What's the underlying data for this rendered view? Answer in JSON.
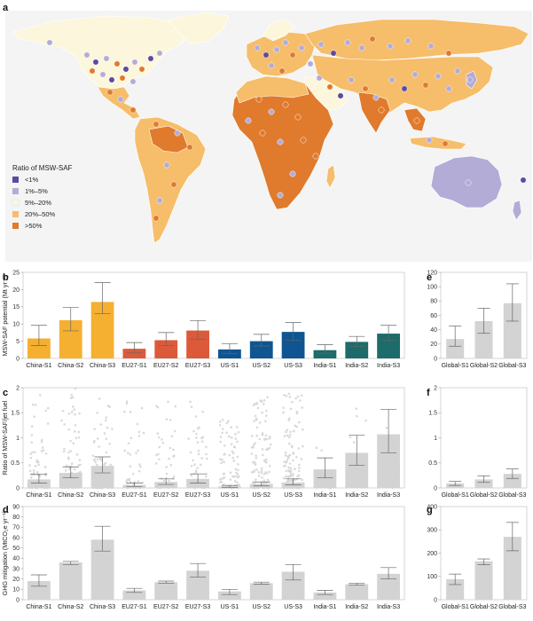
{
  "panel_labels": {
    "a": "a",
    "b": "b",
    "c": "c",
    "d": "d",
    "e": "e",
    "f": "f",
    "g": "g"
  },
  "legend": {
    "title": "Ratio of MSW-SAF",
    "items": [
      {
        "label": "<1%",
        "color": "#5a4aa3"
      },
      {
        "label": "1%–5%",
        "color": "#b3acd6"
      },
      {
        "label": "5%–20%",
        "color": "#fcf7dc"
      },
      {
        "label": "20%–50%",
        "color": "#f6bd6a"
      },
      {
        "label": ">50%",
        "color": "#e07a2c"
      }
    ]
  },
  "series_colors": {
    "China": "#f5b031",
    "EU27": "#dc5a3a",
    "US": "#0f5592",
    "India": "#1d6b6b",
    "Global": "#d3d3d3"
  },
  "chart_data": [
    {
      "panel": "b",
      "type": "bar",
      "ylabel": "MSW-SAF potential (Mt yr⁻¹)",
      "ylim": [
        0,
        25
      ],
      "yticks": [
        0,
        5,
        10,
        15,
        20,
        25
      ],
      "categories": [
        "China-S1",
        "China-S2",
        "China-S3",
        "EU27-S1",
        "EU27-S2",
        "EU27-S3",
        "US-S1",
        "US-S2",
        "US-S3",
        "India-S1",
        "India-S2",
        "India-S3"
      ],
      "groups": [
        "China",
        "China",
        "China",
        "EU27",
        "EU27",
        "EU27",
        "US",
        "US",
        "US",
        "India",
        "India",
        "India"
      ],
      "values": [
        5.8,
        11.1,
        16.4,
        2.8,
        5.3,
        8.1,
        2.6,
        5.0,
        7.7,
        2.4,
        4.8,
        7.2
      ],
      "err_low": [
        3.7,
        8.0,
        13.0,
        1.6,
        3.7,
        5.6,
        1.4,
        3.6,
        5.2,
        1.5,
        3.5,
        5.2
      ],
      "err_high": [
        9.6,
        14.8,
        22.0,
        4.6,
        7.5,
        11.0,
        4.3,
        7.0,
        10.4,
        4.0,
        6.4,
        9.6
      ]
    },
    {
      "panel": "e",
      "type": "bar",
      "ylim": [
        0,
        120
      ],
      "yticks": [
        0,
        20,
        40,
        60,
        80,
        100,
        120
      ],
      "categories": [
        "Global-S1",
        "Global-S2",
        "Global-S3"
      ],
      "values": [
        27,
        52,
        77
      ],
      "err_low": [
        17,
        35,
        52
      ],
      "err_high": [
        45,
        70,
        104
      ]
    },
    {
      "panel": "c",
      "type": "bar+scatter",
      "ylabel": "Ratio of MSW-SAF/jet fuel",
      "ylim": [
        0,
        2.0
      ],
      "yticks": [
        0,
        0.5,
        1.0,
        1.5,
        2.0
      ],
      "categories": [
        "China-S1",
        "China-S2",
        "China-S3",
        "EU27-S1",
        "EU27-S2",
        "EU27-S3",
        "US-S1",
        "US-S2",
        "US-S3",
        "India-S1",
        "India-S2",
        "India-S3"
      ],
      "values": [
        0.17,
        0.3,
        0.44,
        0.06,
        0.12,
        0.18,
        0.03,
        0.08,
        0.11,
        0.37,
        0.7,
        1.07
      ],
      "err_low": [
        0.1,
        0.2,
        0.3,
        0.03,
        0.07,
        0.1,
        0.01,
        0.04,
        0.06,
        0.2,
        0.45,
        0.7
      ],
      "err_high": [
        0.27,
        0.42,
        0.62,
        0.1,
        0.18,
        0.28,
        0.05,
        0.12,
        0.18,
        0.6,
        1.05,
        1.57
      ],
      "point_max": [
        1.85,
        1.98,
        1.78,
        1.72,
        1.72,
        1.72,
        1.36,
        1.81,
        1.88,
        0.8,
        1.58,
        1.2
      ],
      "point_count": [
        70,
        80,
        85,
        40,
        45,
        48,
        90,
        110,
        120,
        6,
        10,
        12
      ]
    },
    {
      "panel": "f",
      "type": "bar",
      "ylim": [
        0,
        2.0
      ],
      "yticks": [
        0,
        0.5,
        1.0,
        1.5,
        2.0
      ],
      "categories": [
        "Global-S1",
        "Global-S2",
        "Global-S3"
      ],
      "values": [
        0.09,
        0.17,
        0.28
      ],
      "err_low": [
        0.05,
        0.11,
        0.19
      ],
      "err_high": [
        0.13,
        0.24,
        0.38
      ]
    },
    {
      "panel": "d",
      "type": "bar",
      "ylabel": "GHG mitigation (MtCO₂e yr⁻¹)",
      "ylim": [
        0,
        90
      ],
      "yticks": [
        0,
        10,
        20,
        30,
        40,
        50,
        60,
        70,
        80,
        90
      ],
      "categories": [
        "China-S1",
        "China-S2",
        "China-S3",
        "EU27-S1",
        "EU27-S2",
        "EU27-S3",
        "US-S1",
        "US-S2",
        "US-S3",
        "India-S1",
        "India-S2",
        "India-S3"
      ],
      "values": [
        18,
        36,
        58,
        9,
        17,
        28,
        8,
        16,
        27,
        7,
        15,
        25
      ],
      "err_low": [
        13,
        34,
        47,
        7,
        16,
        22,
        5,
        15,
        19,
        5,
        14,
        20
      ],
      "err_high": [
        24,
        37,
        71,
        11,
        18,
        35,
        10,
        17,
        34,
        9,
        16,
        31
      ]
    },
    {
      "panel": "g",
      "type": "bar",
      "ylim": [
        0,
        400
      ],
      "yticks": [
        0,
        100,
        200,
        300,
        400
      ],
      "categories": [
        "Global-S1",
        "Global-S2",
        "Global-S3"
      ],
      "values": [
        88,
        165,
        270
      ],
      "err_low": [
        65,
        150,
        210
      ],
      "err_high": [
        110,
        175,
        332
      ]
    }
  ]
}
